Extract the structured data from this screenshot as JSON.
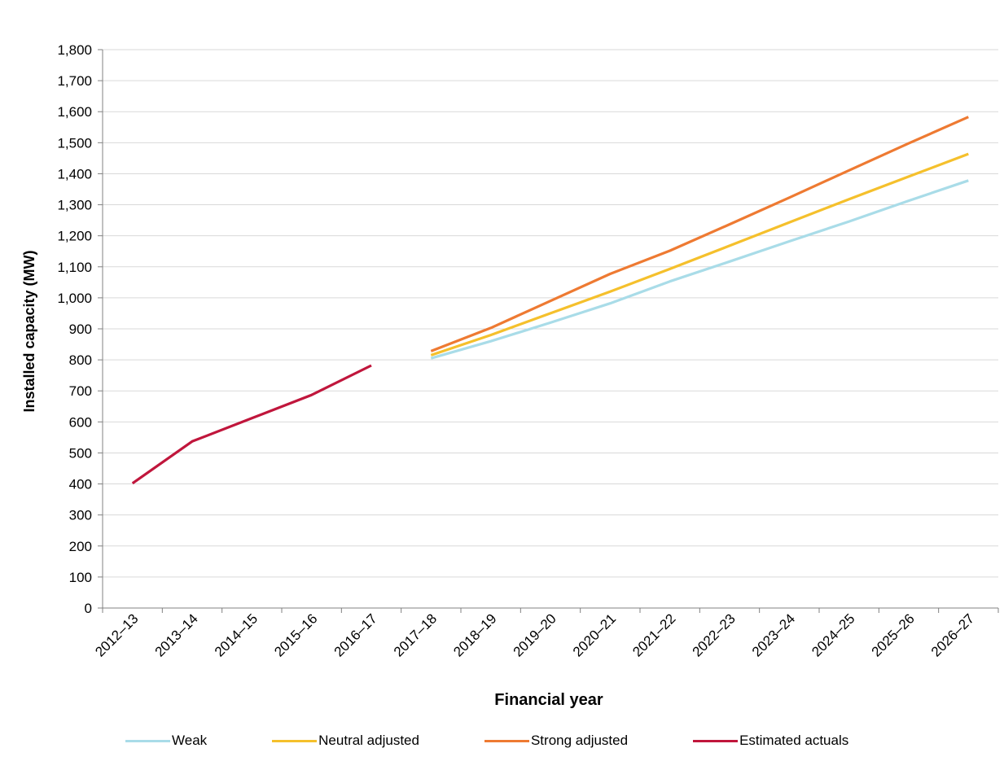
{
  "chart_data": {
    "type": "line",
    "xlabel": "Financial year",
    "ylabel": "Installed capacity (MW)",
    "categories": [
      "2012–13",
      "2013–14",
      "2014–15",
      "2015–16",
      "2016–17",
      "2017–18",
      "2018–19",
      "2019–20",
      "2020–21",
      "2021–22",
      "2022–23",
      "2023–24",
      "2024–25",
      "2025–26",
      "2026–27"
    ],
    "ylim": [
      0,
      1800
    ],
    "yticks": [
      0,
      100,
      200,
      300,
      400,
      500,
      600,
      700,
      800,
      900,
      1000,
      1100,
      1200,
      1300,
      1400,
      1500,
      1600,
      1700,
      1800
    ],
    "ytick_labels": [
      "0",
      "100",
      "200",
      "300",
      "400",
      "500",
      "600",
      "700",
      "800",
      "900",
      "1,000",
      "1,100",
      "1,200",
      "1,300",
      "1,400",
      "1,500",
      "1,600",
      "1,700",
      "1,800"
    ],
    "grid": true,
    "legend_position": "bottom",
    "series": [
      {
        "name": "Weak",
        "color": "#A9DCE8",
        "values": [
          null,
          null,
          null,
          null,
          null,
          805,
          860,
          920,
          982,
          1053,
          1117,
          1182,
          1246,
          1313,
          1378
        ]
      },
      {
        "name": "Neutral adjusted",
        "color": "#F5C02C",
        "values": [
          null,
          null,
          null,
          null,
          null,
          815,
          880,
          950,
          1020,
          1093,
          1168,
          1243,
          1318,
          1391,
          1464
        ]
      },
      {
        "name": "Strong adjusted",
        "color": "#EE7A32",
        "values": [
          null,
          null,
          null,
          null,
          null,
          828,
          903,
          990,
          1077,
          1152,
          1237,
          1323,
          1411,
          1498,
          1583
        ]
      },
      {
        "name": "Estimated actuals",
        "color": "#C0163C",
        "values": [
          402,
          537,
          612,
          687,
          782,
          null,
          null,
          null,
          null,
          null,
          null,
          null,
          null,
          null,
          null
        ]
      }
    ]
  }
}
